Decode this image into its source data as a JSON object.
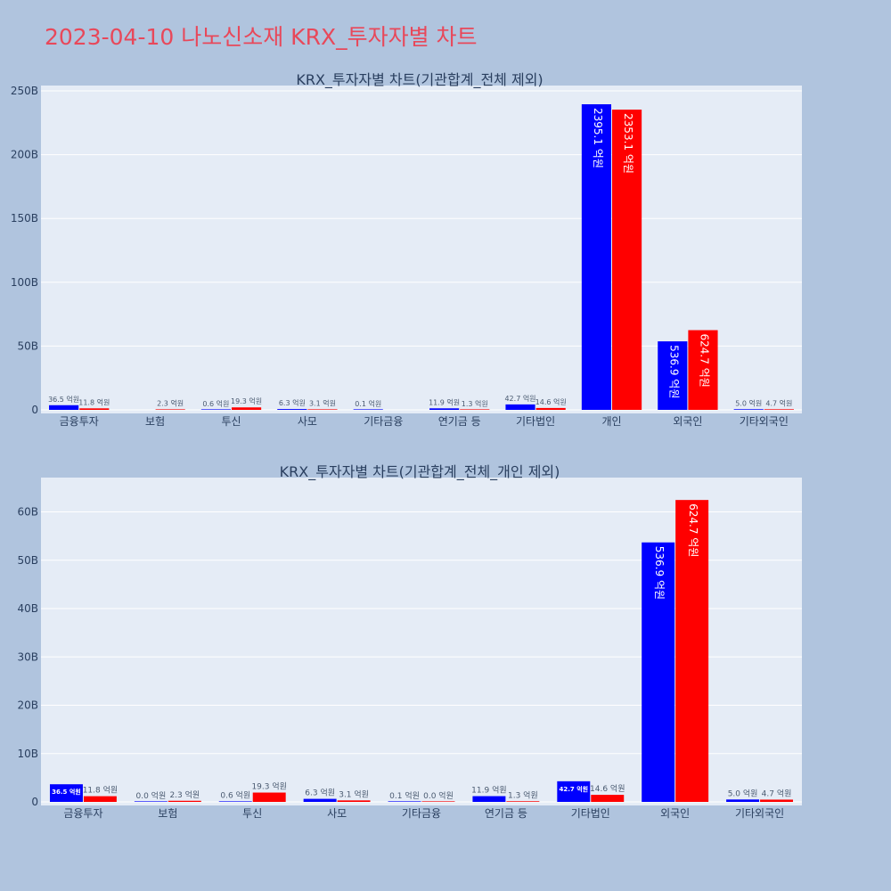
{
  "title": "2023-04-10 나노신소재 KRX_투자자별 차트",
  "colors": {
    "buy": "#0000ff",
    "sell": "#ff0000",
    "plot_bg": "#e5ecf6",
    "page_bg": "#b0c4de",
    "title": "#e8485a"
  },
  "chart_data": [
    {
      "type": "bar",
      "title": "KRX_투자자별 차트(기관합계_전체 제외)",
      "categories": [
        "금융투자",
        "보험",
        "투신",
        "사모",
        "기타금융",
        "연기금 등",
        "기타법인",
        "개인",
        "외국인",
        "기타외국인"
      ],
      "ylim": [
        0,
        250
      ],
      "yticks": [
        0,
        50,
        100,
        150,
        200,
        250
      ],
      "ytick_labels": [
        "0",
        "50B",
        "100B",
        "150B",
        "200B",
        "250B"
      ],
      "series": [
        {
          "values": [
            3.65,
            null,
            0.06,
            0.63,
            0.01,
            1.19,
            4.27,
            239.51,
            53.69,
            0.5
          ],
          "labels": [
            "36.5 억원",
            "",
            "0.6 억원",
            "6.3 억원",
            "0.1 억원",
            "11.9 억원",
            "42.7 억원",
            "2395.1 억원",
            "536.9 억원",
            "5.0 억원"
          ]
        },
        {
          "values": [
            1.18,
            0.23,
            1.93,
            0.31,
            null,
            0.13,
            1.46,
            235.31,
            62.47,
            0.47
          ],
          "labels": [
            "11.8 억원",
            "2.3 억원",
            "19.3 억원",
            "3.1 억원",
            "",
            "1.3 억원",
            "14.6 억원",
            "2353.1 억원",
            "624.7 억원",
            "4.7 억원"
          ]
        }
      ]
    },
    {
      "type": "bar",
      "title": "KRX_투자자별 차트(기관합계_전체_개인 제외)",
      "categories": [
        "금융투자",
        "보험",
        "투신",
        "사모",
        "기타금융",
        "연기금 등",
        "기타법인",
        "외국인",
        "기타외국인"
      ],
      "ylim": [
        0,
        66
      ],
      "yticks": [
        0,
        10,
        20,
        30,
        40,
        50,
        60
      ],
      "ytick_labels": [
        "0",
        "10B",
        "20B",
        "30B",
        "40B",
        "50B",
        "60B"
      ],
      "series": [
        {
          "values": [
            3.65,
            0.0,
            0.06,
            0.63,
            0.01,
            1.19,
            4.27,
            53.69,
            0.5
          ],
          "labels": [
            "36.5 억원",
            "0.0 억원",
            "0.6 억원",
            "6.3 억원",
            "0.1 억원",
            "11.9 억원",
            "42.7 억원",
            "536.9 억원",
            "5.0 억원"
          ]
        },
        {
          "values": [
            1.18,
            0.23,
            1.93,
            0.31,
            0.0,
            0.13,
            1.46,
            62.47,
            0.47
          ],
          "labels": [
            "11.8 억원",
            "2.3 억원",
            "19.3 억원",
            "3.1 억원",
            "0.0 억원",
            "1.3 억원",
            "14.6 억원",
            "624.7 억원",
            "4.7 억원"
          ]
        }
      ]
    }
  ]
}
